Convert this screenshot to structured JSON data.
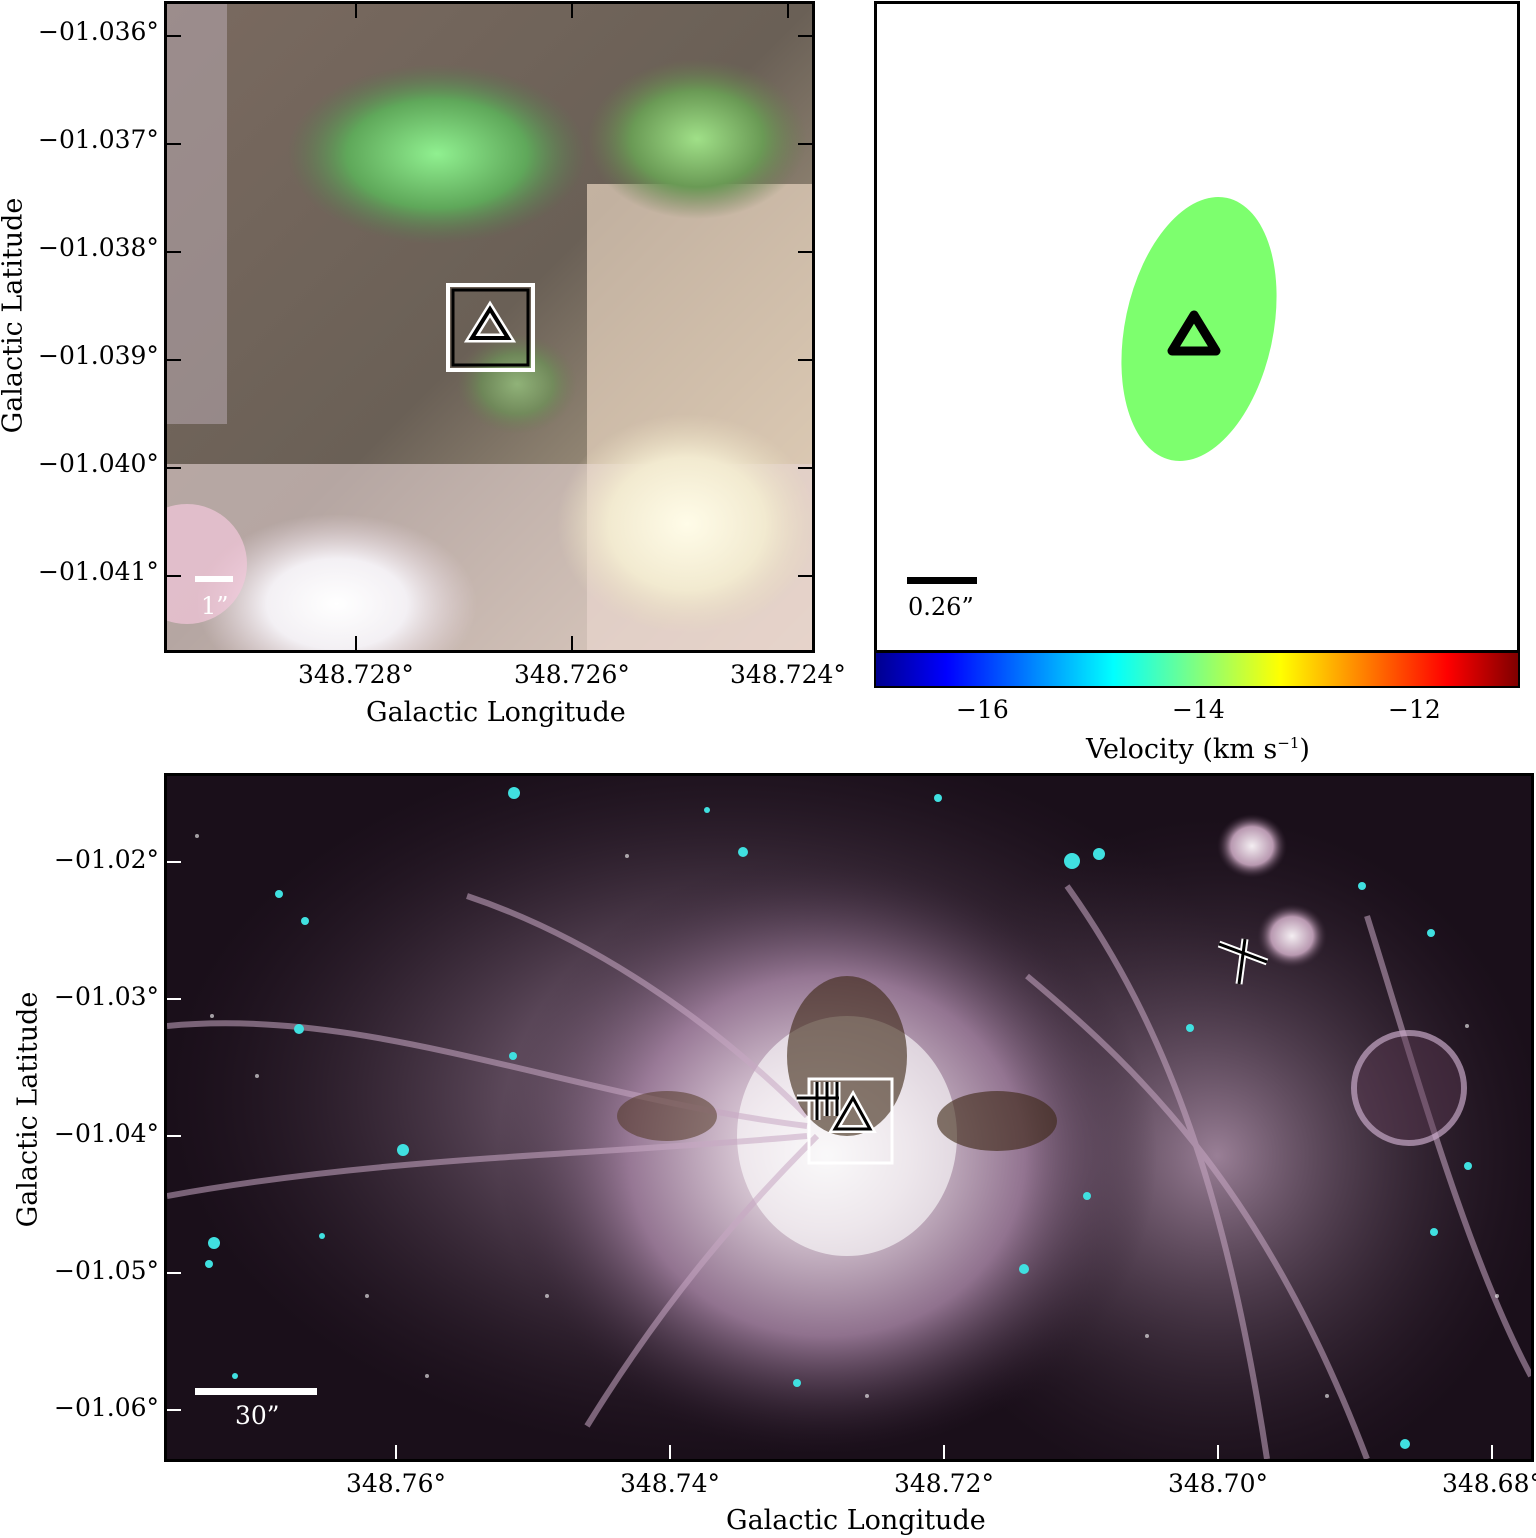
{
  "top_left": {
    "y_ticks": [
      "−01.036°",
      "−01.037°",
      "−01.038°",
      "−01.039°",
      "−01.040°",
      "−01.041°"
    ],
    "x_ticks": [
      "348.728°",
      "348.726°",
      "348.724°"
    ],
    "xlabel": "Galactic Longitude",
    "ylabel": "Galactic Latitude",
    "scale_label": "1”"
  },
  "top_right": {
    "scale_label": "0.26”",
    "ellipse_color": "#7dff6e",
    "colorbar": {
      "ticks": [
        "−16",
        "−14",
        "−12"
      ],
      "label": "Velocity (km s",
      "label_sup": "−1",
      "label_end": ")",
      "range": [
        -17,
        -11
      ],
      "colormap": "jet"
    }
  },
  "bottom": {
    "y_ticks": [
      "−01.02°",
      "−01.03°",
      "−01.04°",
      "−01.05°",
      "−01.06°"
    ],
    "x_ticks": [
      "348.76°",
      "348.74°",
      "348.72°",
      "348.70°",
      "348.68°"
    ],
    "xlabel": "Galactic Longitude",
    "ylabel": "Galactic Latitude",
    "scale_label": "30”"
  }
}
